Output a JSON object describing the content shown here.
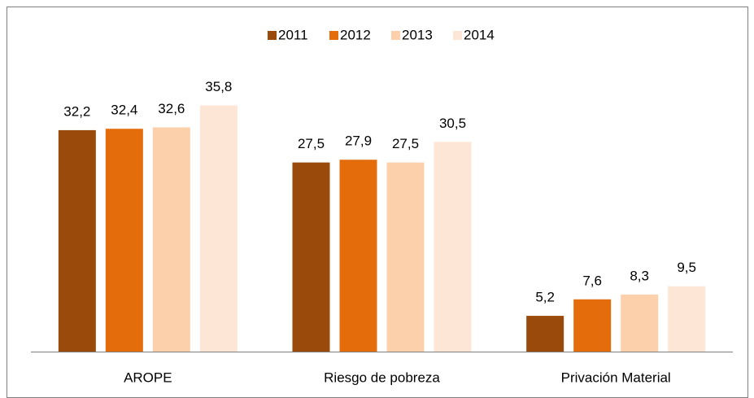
{
  "chart_data": {
    "type": "bar",
    "categories": [
      "AROPE",
      "Riesgo de pobreza",
      "Privación Material"
    ],
    "series": [
      {
        "name": "2011",
        "color": "#9a4a0a",
        "values": [
          32.2,
          27.5,
          5.2
        ],
        "value_labels": [
          "32,2",
          "27,5",
          "5,2"
        ]
      },
      {
        "name": "2012",
        "color": "#e46c0a",
        "values": [
          32.4,
          27.9,
          7.6
        ],
        "value_labels": [
          "32,4",
          "27,9",
          "7,6"
        ]
      },
      {
        "name": "2013",
        "color": "#fbd0aa",
        "values": [
          32.6,
          27.5,
          8.3
        ],
        "value_labels": [
          "32,6",
          "27,5",
          "8,3"
        ]
      },
      {
        "name": "2014",
        "color": "#fde6d6",
        "values": [
          35.8,
          30.5,
          9.5
        ],
        "value_labels": [
          "35,8",
          "30,5",
          "9,5"
        ]
      }
    ],
    "ylim": [
      0,
      40
    ]
  }
}
